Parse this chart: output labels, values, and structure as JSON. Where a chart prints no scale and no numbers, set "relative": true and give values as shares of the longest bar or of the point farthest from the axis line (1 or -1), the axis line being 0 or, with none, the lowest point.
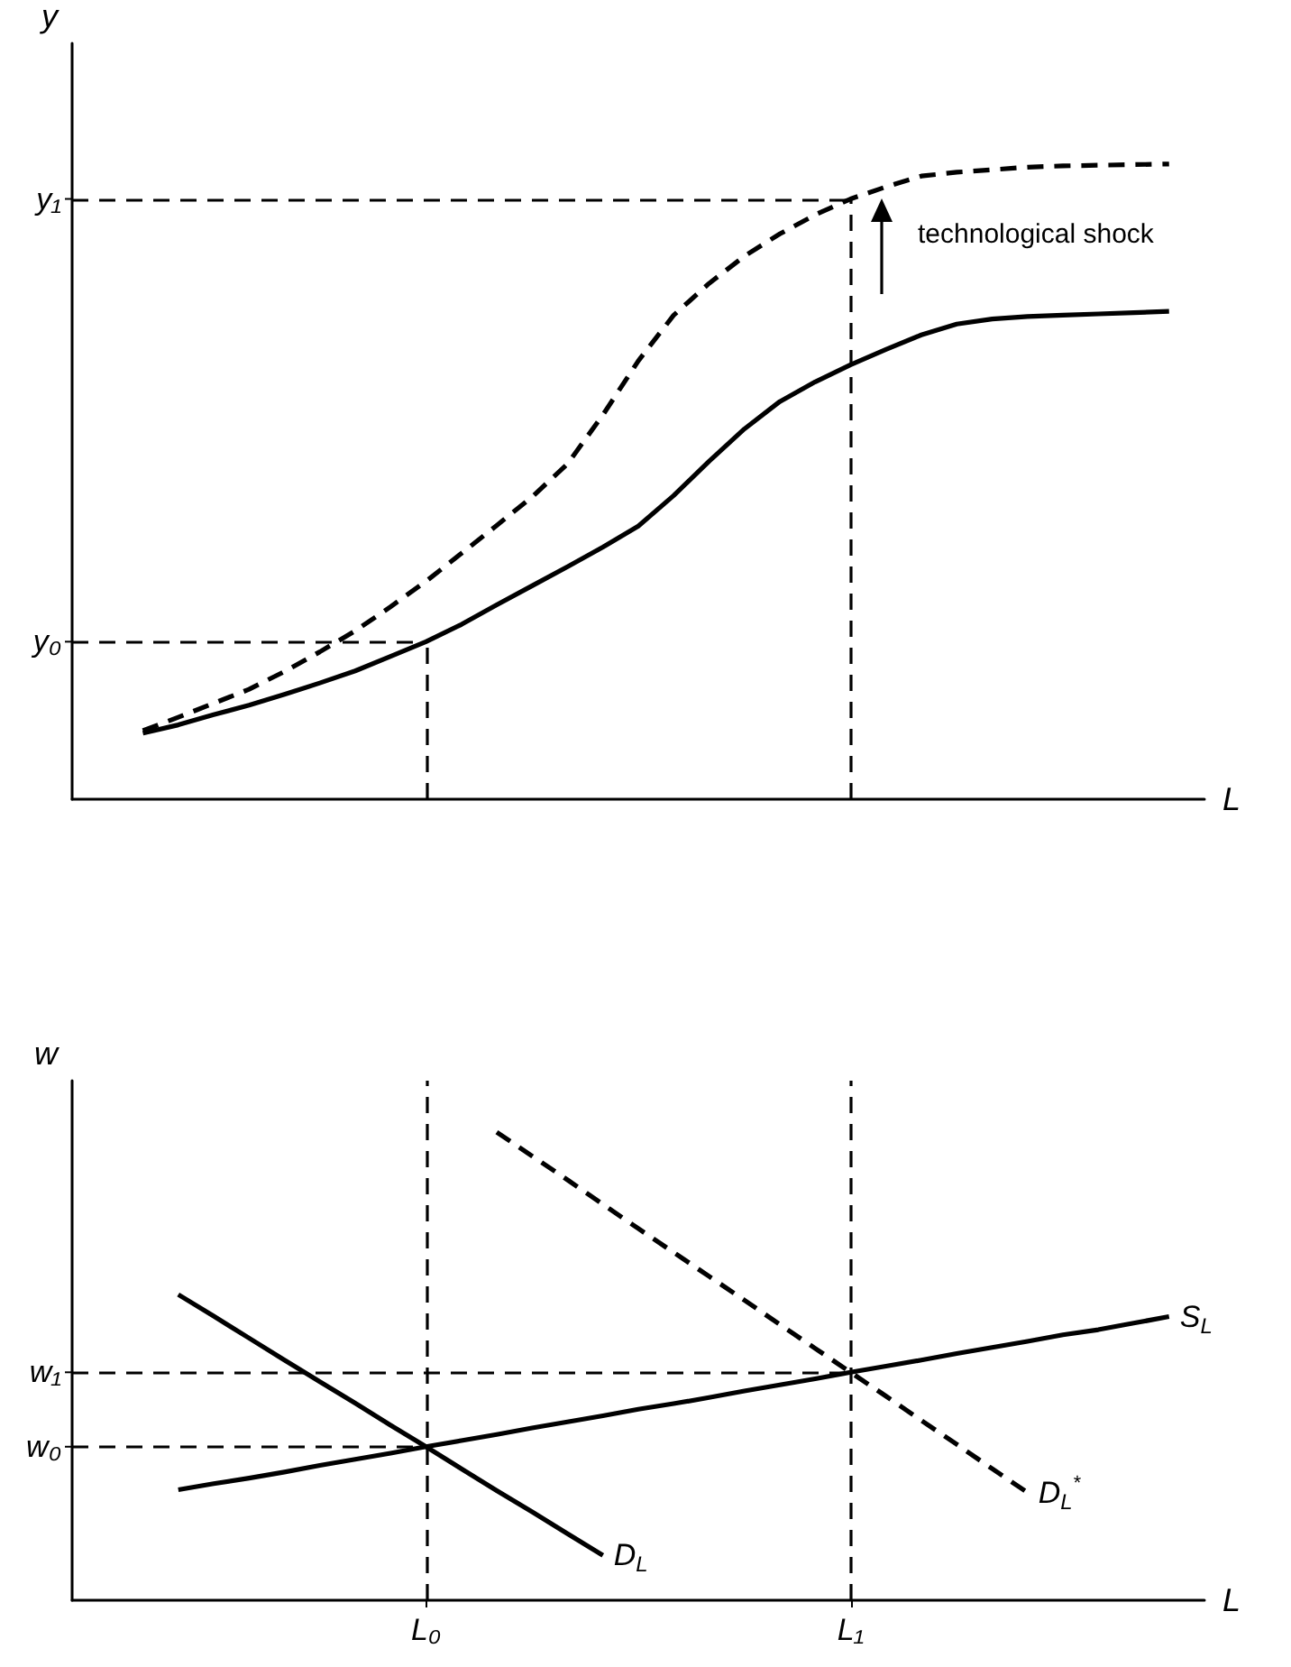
{
  "chart_data": [
    {
      "type": "line",
      "relative": true,
      "ylabel": "y",
      "xlabel": "L",
      "tick_labels": false,
      "categories": [
        null,
        null,
        null,
        null,
        null,
        null,
        null,
        null,
        null,
        null,
        "L₀",
        null,
        null,
        null,
        null,
        null,
        null,
        null,
        null,
        null,
        null,
        null,
        "L₁",
        null,
        null,
        null,
        null,
        null,
        null,
        null,
        null,
        null,
        null
      ],
      "annotations": [
        "technological shock"
      ],
      "ref_lines": [
        {
          "axis": "x",
          "value": "L₀",
          "color": "#000000",
          "line_style": "dashed"
        },
        {
          "axis": "x",
          "value": "L₁",
          "color": "#000000",
          "line_style": "dashed"
        },
        {
          "axis": "y",
          "value": 0.248,
          "label": "y₀",
          "color": "#000000",
          "line_style": "dashed"
        },
        {
          "axis": "y",
          "value": 0.945,
          "label": "y₁",
          "color": "#000000",
          "line_style": "dashed"
        }
      ],
      "series": [
        {
          "color": "#000000",
          "line_style": "solid",
          "values": [
            null,
            null,
            0.104,
            0.117,
            0.133,
            0.148,
            0.165,
            0.183,
            0.202,
            0.225,
            0.248,
            0.275,
            0.306,
            0.336,
            0.366,
            0.397,
            0.43,
            0.478,
            0.532,
            0.583,
            0.626,
            0.657,
            0.684,
            0.708,
            0.731,
            0.748,
            0.756,
            0.76,
            0.762,
            0.764,
            0.766,
            0.768,
            null
          ]
        },
        {
          "color": "#000000",
          "line_style": "dashed",
          "values": [
            null,
            null,
            0.108,
            0.129,
            0.151,
            0.173,
            0.201,
            0.232,
            0.265,
            0.303,
            0.343,
            0.387,
            0.431,
            0.476,
            0.528,
            0.605,
            0.69,
            0.762,
            0.812,
            0.855,
            0.89,
            0.92,
            0.945,
            0.964,
            0.981,
            0.987,
            0.991,
            0.995,
            0.997,
            0.998,
            0.999,
            1,
            null
          ]
        }
      ]
    },
    {
      "type": "line",
      "relative": true,
      "ylabel": "w",
      "xlabel": "L",
      "tick_labels": "x",
      "categories": [
        null,
        null,
        null,
        null,
        null,
        null,
        null,
        null,
        null,
        null,
        "L₀",
        null,
        null,
        null,
        null,
        null,
        null,
        null,
        null,
        null,
        null,
        null,
        "L₁",
        null,
        null,
        null,
        null,
        null,
        null,
        null,
        null,
        null,
        null
      ],
      "ref_lines": [
        {
          "axis": "x",
          "value": "L₀",
          "color": "#000000",
          "line_style": "dashed"
        },
        {
          "axis": "x",
          "value": "L₁",
          "color": "#000000",
          "line_style": "dashed"
        },
        {
          "axis": "y",
          "value": 0.328,
          "label": "w₀",
          "color": "#000000",
          "line_style": "dashed"
        },
        {
          "axis": "y",
          "value": 0.487,
          "label": "w₁",
          "color": "#000000",
          "line_style": "dashed"
        }
      ],
      "series": [
        {
          "name": "S$_{L}$",
          "color": "#000000",
          "line_style": "solid",
          "values": [
            null,
            null,
            null,
            0.236,
            0.249,
            0.261,
            0.274,
            0.288,
            0.301,
            0.314,
            0.328,
            0.341,
            0.354,
            0.368,
            0.381,
            0.394,
            0.408,
            0.42,
            0.433,
            0.447,
            0.46,
            0.473,
            0.487,
            0.5,
            0.513,
            0.527,
            0.54,
            0.553,
            0.567,
            0.578,
            0.592,
            0.606,
            null
          ]
        },
        {
          "name": "D$_{L}$",
          "color": "#000000",
          "line_style": "solid",
          "values": [
            null,
            null,
            null,
            0.653,
            0.607,
            0.56,
            0.513,
            0.467,
            0.421,
            0.374,
            0.328,
            0.281,
            0.234,
            0.189,
            0.142,
            0.096,
            null,
            null,
            null,
            null,
            null,
            null,
            null,
            null,
            null,
            null,
            null,
            null,
            null,
            null,
            null,
            null,
            null
          ]
        },
        {
          "name": "D$_{L}$$^{*}$",
          "color": "#000000",
          "line_style": "dashed",
          "values": [
            null,
            null,
            null,
            null,
            null,
            null,
            null,
            null,
            null,
            null,
            null,
            null,
            1,
            0.949,
            0.898,
            0.846,
            0.794,
            0.743,
            0.692,
            0.641,
            0.589,
            0.538,
            0.487,
            0.436,
            0.384,
            0.333,
            0.281,
            0.23,
            null,
            null,
            null,
            null,
            null
          ]
        }
      ]
    }
  ]
}
